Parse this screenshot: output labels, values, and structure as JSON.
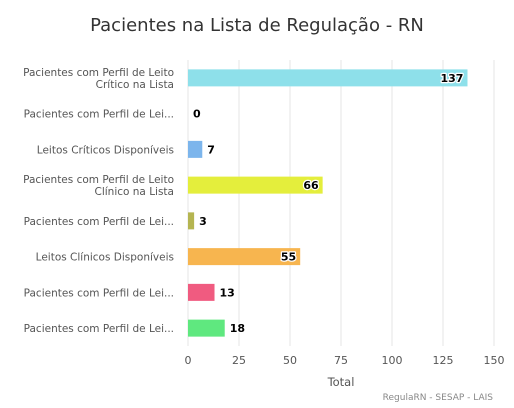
{
  "chart_data": {
    "type": "bar",
    "orientation": "horizontal",
    "title": "Pacientes na Lista de Regulação - RN",
    "categories": [
      [
        "Pacientes com Perfil de Leito",
        "Crítico na Lista"
      ],
      [
        "Pacientes com Perfil de Lei..."
      ],
      [
        "Leitos Críticos Disponíveis"
      ],
      [
        "Pacientes com Perfil de Leito",
        "Clínico na Lista"
      ],
      [
        "Pacientes com Perfil de Lei..."
      ],
      [
        "Leitos Clínicos Disponíveis"
      ],
      [
        "Pacientes com Perfil de Lei..."
      ],
      [
        "Pacientes com Perfil de Lei..."
      ]
    ],
    "values": [
      137,
      0,
      7,
      66,
      3,
      55,
      13,
      18
    ],
    "colors": [
      "#8ee0ea",
      "#434348",
      "#7cb5ec",
      "#e4ee3c",
      "#b5b551",
      "#f7b54f",
      "#f05b80",
      "#5fe87f"
    ],
    "xlabel": "Total",
    "xlim": [
      0,
      150
    ],
    "ticks": [
      0,
      25,
      50,
      75,
      100,
      125,
      150
    ],
    "grid": true,
    "legend": "none",
    "credits": "RegulaRN - SESAP - LAIS"
  }
}
